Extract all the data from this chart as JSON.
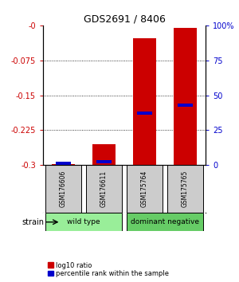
{
  "title": "GDS2691 / 8406",
  "samples": [
    "GSM176606",
    "GSM176611",
    "GSM175764",
    "GSM175765"
  ],
  "log10_ratio": [
    -0.298,
    -0.256,
    -0.027,
    -0.005
  ],
  "percentile_rank": [
    1.5,
    2.5,
    37.0,
    43.0
  ],
  "ylim_left": [
    -0.3,
    0.0
  ],
  "ylim_right": [
    0,
    100
  ],
  "yticks_left": [
    0,
    -0.075,
    -0.15,
    -0.225,
    -0.3
  ],
  "ytick_labels_left": [
    "-0",
    "-0.075",
    "-0.15",
    "-0.225",
    "-0.3"
  ],
  "yticks_right": [
    0,
    25,
    50,
    75,
    100
  ],
  "ytick_labels_right": [
    "0",
    "25",
    "50",
    "75",
    "100%"
  ],
  "red_color": "#cc0000",
  "blue_color": "#0000cc",
  "groups": [
    {
      "label": "wild type",
      "samples": [
        0,
        1
      ],
      "color": "#99ee99"
    },
    {
      "label": "dominant negative",
      "samples": [
        2,
        3
      ],
      "color": "#66cc66"
    }
  ],
  "group_row_label": "strain",
  "legend_red": "log10 ratio",
  "legend_blue": "percentile rank within the sample",
  "sample_box_color": "#cccccc"
}
